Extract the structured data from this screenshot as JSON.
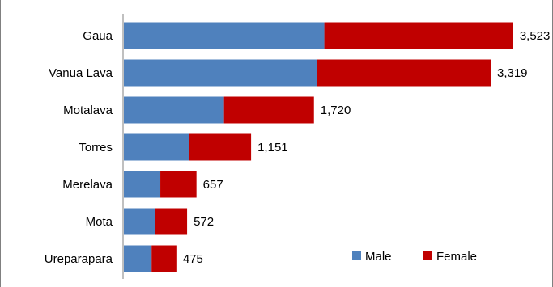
{
  "chart_data": {
    "type": "bar",
    "orientation": "horizontal",
    "stacked": true,
    "title": "",
    "categories": [
      "Gaua",
      "Vanua Lava",
      "Motalava",
      "Torres",
      "Merelava",
      "Mota",
      "Ureparapara"
    ],
    "series": [
      {
        "name": "Male",
        "values": [
          1814,
          1749,
          906,
          589,
          330,
          284,
          251
        ],
        "color": "#4f81bd"
      },
      {
        "name": "Female",
        "values": [
          1709,
          1570,
          814,
          562,
          327,
          288,
          224
        ],
        "color": "#c00000"
      }
    ],
    "totals": [
      "3,523",
      "3,319",
      "1,720",
      "1,151",
      "657",
      "572",
      "475"
    ],
    "total_values": [
      3523,
      3319,
      1720,
      1151,
      657,
      572,
      475
    ],
    "xlim": [
      0,
      3700
    ],
    "grid": false,
    "legend_position": "bottom-right"
  }
}
